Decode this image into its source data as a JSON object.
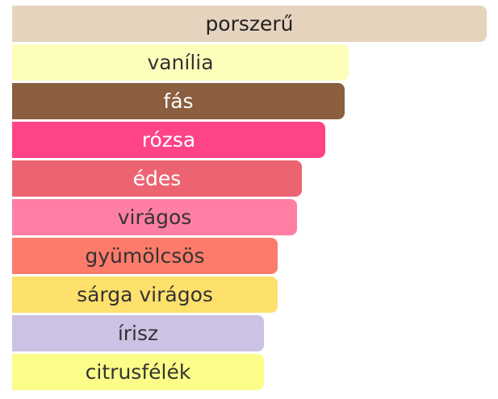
{
  "chart_data": {
    "type": "bar",
    "orientation": "horizontal",
    "categories": [
      "porszerű",
      "vanília",
      "fás",
      "rózsa",
      "édes",
      "virágos",
      "gyümölcsös",
      "sárga virágos",
      "írisz",
      "citrusfélék"
    ],
    "values": [
      100,
      71,
      70,
      66,
      61,
      60,
      56,
      56,
      53,
      53
    ],
    "colors": [
      "#E6D3BE",
      "#FEFEBB",
      "#8A5E3E",
      "#FE4487",
      "#EC6472",
      "#FE7FA3",
      "#FD7B6B",
      "#FEE06C",
      "#CCC2E3",
      "#FBFD88"
    ],
    "label_colors": [
      "#222222",
      "#333333",
      "#ffffff",
      "#ffffff",
      "#ffffff",
      "#333333",
      "#333333",
      "#333333",
      "#333333",
      "#333333"
    ],
    "title": "",
    "xlabel": "",
    "ylabel": "",
    "grid": false,
    "legend": "none"
  }
}
